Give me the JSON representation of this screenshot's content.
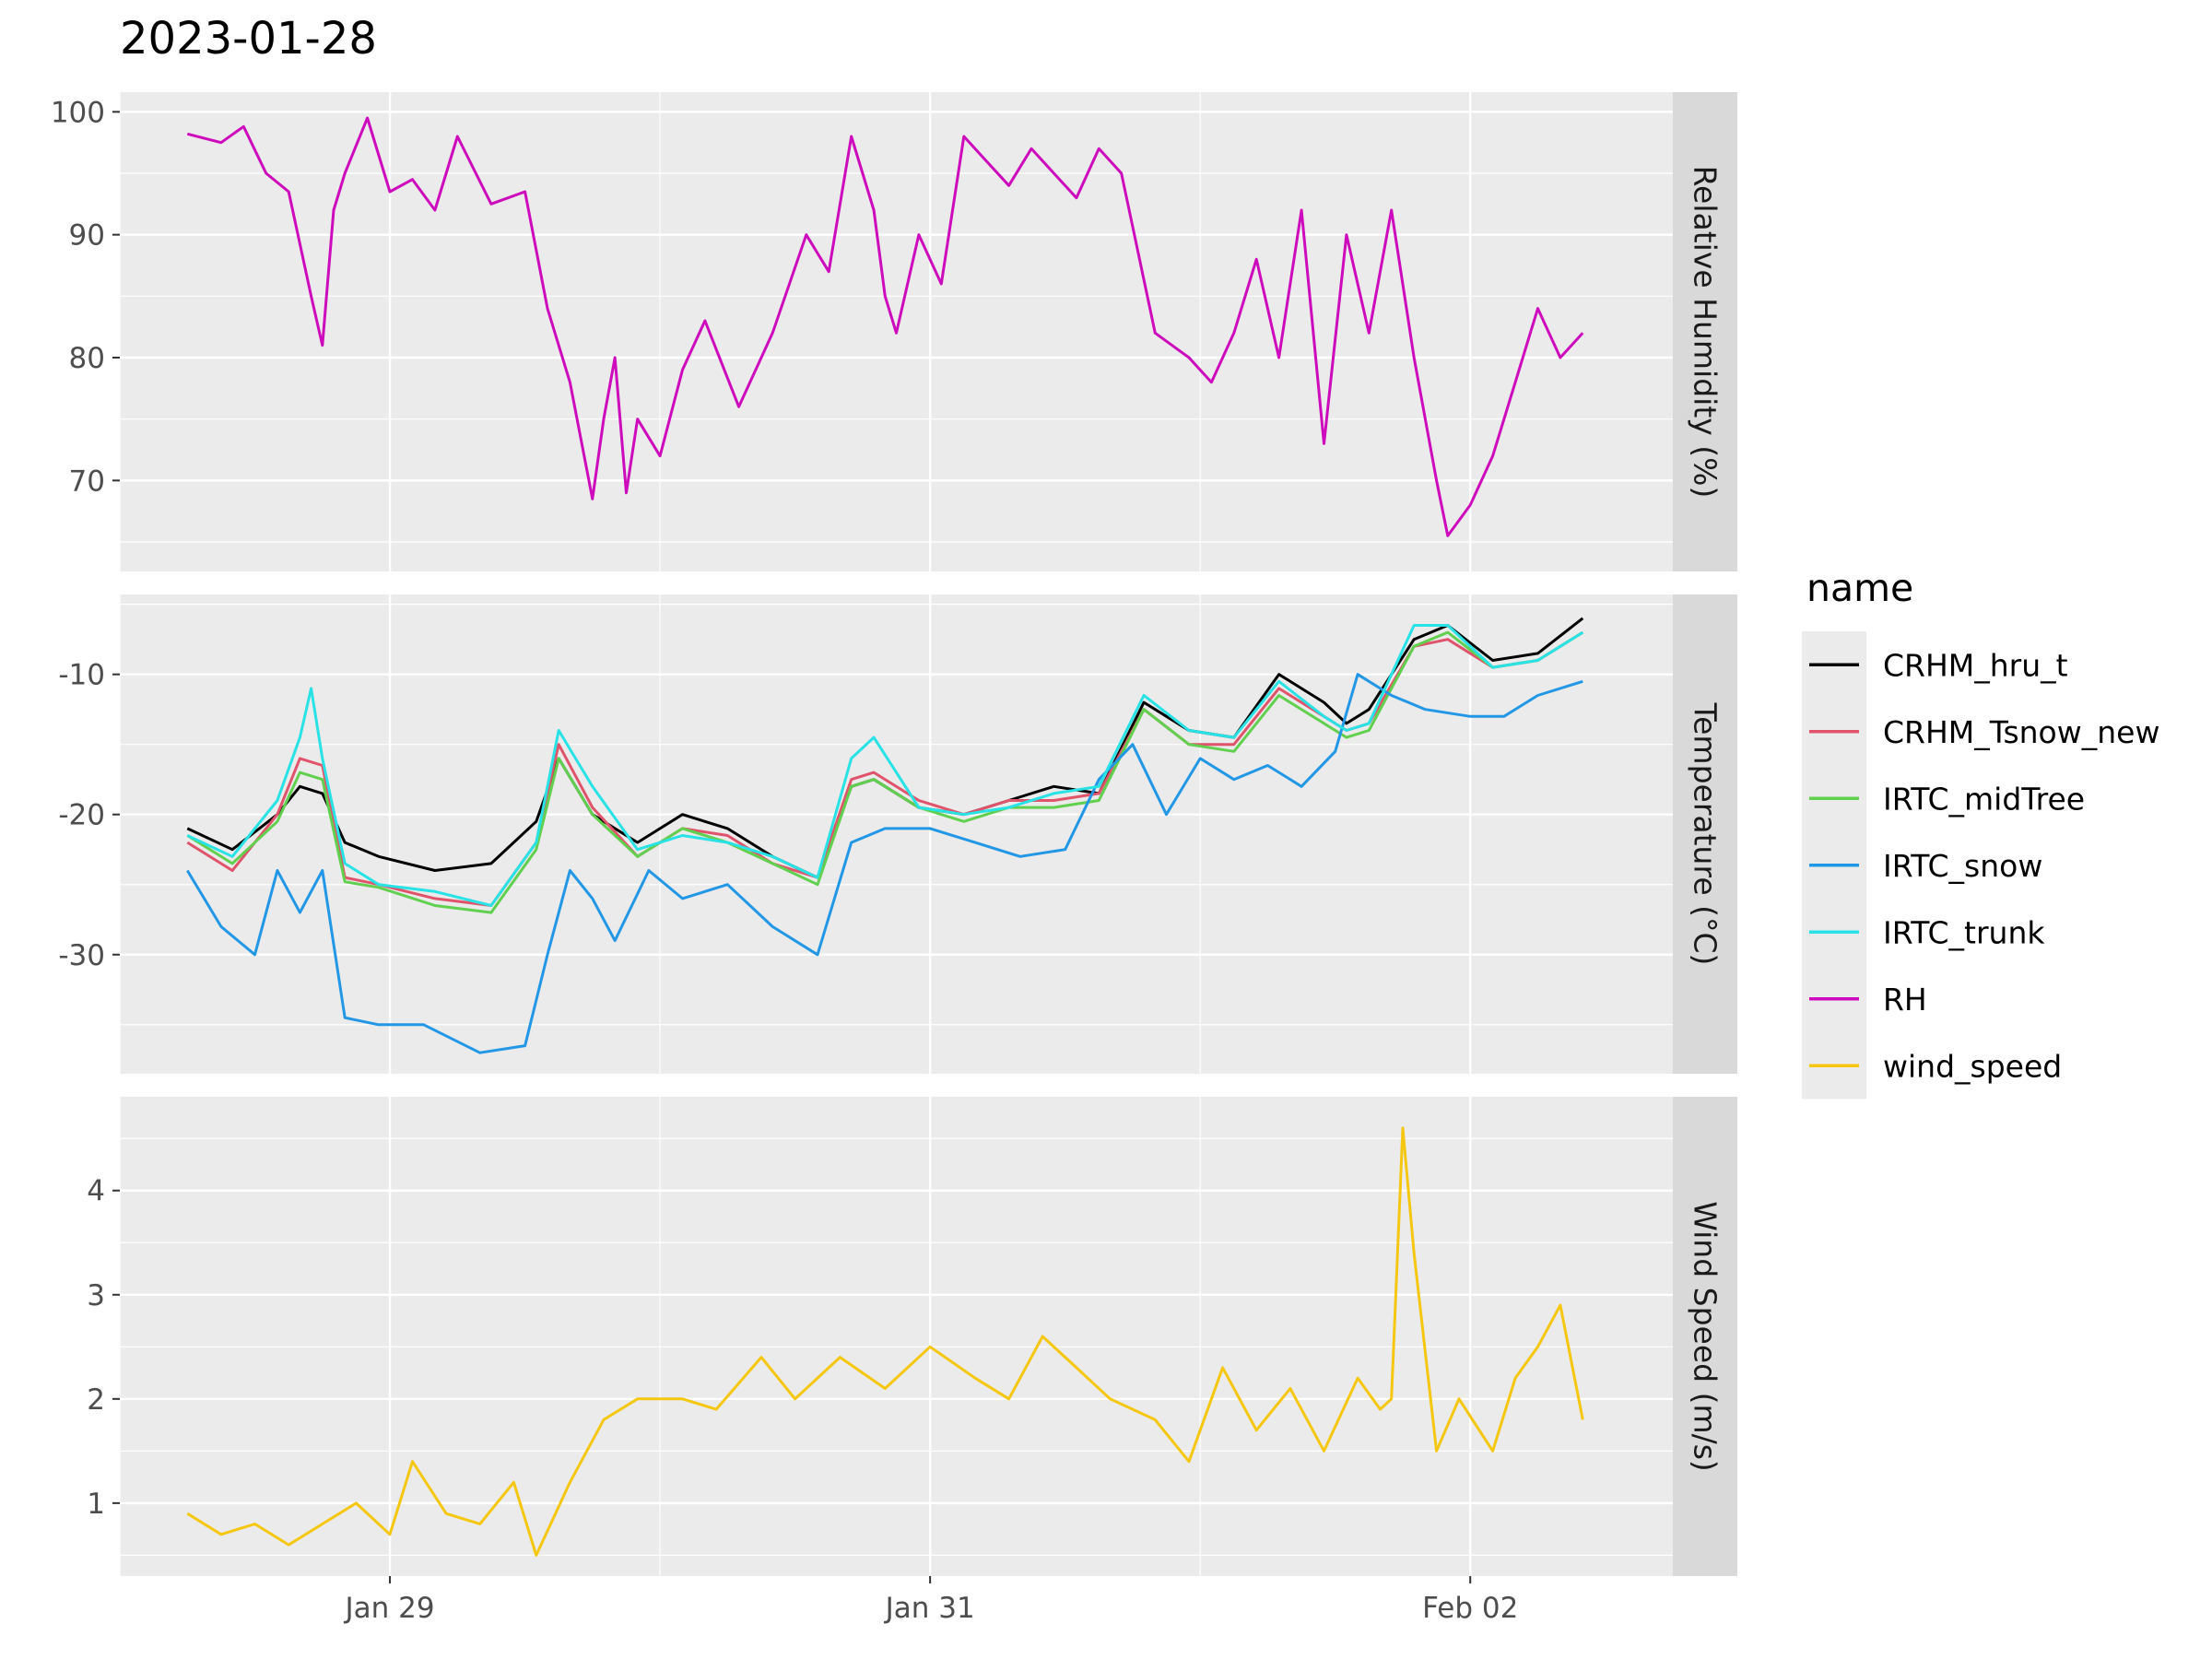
{
  "chart_data": {
    "type": "line",
    "title": "2023-01-28",
    "x_axis": {
      "kind": "time",
      "range": [
        "2023-01-28T00:00",
        "2023-02-02T18:00"
      ],
      "ticks": [
        {
          "date": "2023-01-29T00:00",
          "label": "Jan 29"
        },
        {
          "date": "2023-01-31T00:00",
          "label": "Jan 31"
        },
        {
          "date": "2023-02-02T00:00",
          "label": "Feb 02"
        }
      ],
      "minor_ticks": [
        "2023-01-28T00:00",
        "2023-01-30T00:00",
        "2023-02-01T00:00"
      ]
    },
    "grid": true,
    "legend": {
      "title": "name",
      "placement": "right",
      "entries": [
        {
          "name": "CRHM_hru_t",
          "color": "#000000"
        },
        {
          "name": "CRHM_Tsnow_new",
          "color": "#df536b"
        },
        {
          "name": "IRTC_midTree",
          "color": "#61d04f"
        },
        {
          "name": "IRTC_snow",
          "color": "#2297e6"
        },
        {
          "name": "IRTC_trunk",
          "color": "#28e2e5"
        },
        {
          "name": "RH",
          "color": "#cd0bbc"
        },
        {
          "name": "wind_speed",
          "color": "#f5c710"
        }
      ]
    },
    "panels": [
      {
        "strip": "Relative Humidity (%)",
        "ylim": [
          62.6,
          101.6
        ],
        "yticks": [
          70,
          80,
          90,
          100
        ],
        "y_minor": [
          65,
          75,
          85,
          95
        ],
        "series": [
          {
            "name": "RH",
            "color": "#cd0bbc",
            "x": [
              "2023-01-28T06:00",
              "2023-01-28T09:00",
              "2023-01-28T11:00",
              "2023-01-28T13:00",
              "2023-01-28T15:00",
              "2023-01-28T17:00",
              "2023-01-28T18:00",
              "2023-01-28T19:00",
              "2023-01-28T20:00",
              "2023-01-28T22:00",
              "2023-01-29T00:00",
              "2023-01-29T02:00",
              "2023-01-29T04:00",
              "2023-01-29T06:00",
              "2023-01-29T09:00",
              "2023-01-29T12:00",
              "2023-01-29T14:00",
              "2023-01-29T16:00",
              "2023-01-29T18:00",
              "2023-01-29T19:00",
              "2023-01-29T20:00",
              "2023-01-29T21:00",
              "2023-01-29T22:00",
              "2023-01-30T00:00",
              "2023-01-30T02:00",
              "2023-01-30T04:00",
              "2023-01-30T07:00",
              "2023-01-30T10:00",
              "2023-01-30T13:00",
              "2023-01-30T15:00",
              "2023-01-30T17:00",
              "2023-01-30T18:00",
              "2023-01-30T19:00",
              "2023-01-30T20:00",
              "2023-01-30T21:00",
              "2023-01-30T23:00",
              "2023-01-31T01:00",
              "2023-01-31T03:00",
              "2023-01-31T05:00",
              "2023-01-31T07:00",
              "2023-01-31T09:00",
              "2023-01-31T11:00",
              "2023-01-31T13:00",
              "2023-01-31T15:00",
              "2023-01-31T17:00",
              "2023-01-31T20:00",
              "2023-01-31T23:00",
              "2023-02-01T01:00",
              "2023-02-01T03:00",
              "2023-02-01T05:00",
              "2023-02-01T07:00",
              "2023-02-01T09:00",
              "2023-02-01T11:00",
              "2023-02-01T13:00",
              "2023-02-01T15:00",
              "2023-02-01T17:00",
              "2023-02-01T19:00",
              "2023-02-01T21:00",
              "2023-02-01T22:00",
              "2023-02-02T00:00",
              "2023-02-02T02:00",
              "2023-02-02T04:00",
              "2023-02-02T06:00",
              "2023-02-02T08:00",
              "2023-02-02T10:00"
            ],
            "y": [
              98.2,
              97.5,
              98.8,
              95.0,
              93.5,
              85.0,
              81.0,
              92.0,
              95.0,
              99.5,
              93.5,
              94.5,
              92.0,
              98.0,
              92.5,
              93.5,
              84.0,
              78.0,
              68.5,
              75.0,
              80.0,
              69.0,
              75.0,
              72.0,
              79.0,
              83.0,
              76.0,
              82.0,
              90.0,
              87.0,
              98.0,
              95.0,
              92.0,
              85.0,
              82.0,
              90.0,
              86.0,
              98.0,
              96.0,
              94.0,
              97.0,
              95.0,
              93.0,
              97.0,
              95.0,
              82.0,
              80.0,
              78.0,
              82.0,
              88.0,
              80.0,
              92.0,
              73.0,
              90.0,
              82.0,
              92.0,
              80.0,
              70.0,
              65.5,
              68.0,
              72.0,
              78.0,
              84.0,
              80.0,
              82.0
            ]
          }
        ]
      },
      {
        "strip": "Temperature (°C)",
        "ylim": [
          -38.5,
          -4.3
        ],
        "yticks": [
          -30,
          -20,
          -10
        ],
        "y_minor": [
          -35,
          -25,
          -15,
          -5
        ],
        "series": [
          {
            "name": "CRHM_hru_t",
            "color": "#000000",
            "x": [
              "2023-01-28T06:00",
              "2023-01-28T10:00",
              "2023-01-28T14:00",
              "2023-01-28T16:00",
              "2023-01-28T18:00",
              "2023-01-28T20:00",
              "2023-01-28T23:00",
              "2023-01-29T04:00",
              "2023-01-29T09:00",
              "2023-01-29T13:00",
              "2023-01-29T15:00",
              "2023-01-29T18:00",
              "2023-01-29T22:00",
              "2023-01-30T02:00",
              "2023-01-30T06:00",
              "2023-01-30T10:00",
              "2023-01-30T14:00",
              "2023-01-30T17:00",
              "2023-01-30T19:00",
              "2023-01-30T23:00",
              "2023-01-31T03:00",
              "2023-01-31T07:00",
              "2023-01-31T11:00",
              "2023-01-31T15:00",
              "2023-01-31T19:00",
              "2023-01-31T23:00",
              "2023-02-01T03:00",
              "2023-02-01T07:00",
              "2023-02-01T11:00",
              "2023-02-01T13:00",
              "2023-02-01T15:00",
              "2023-02-01T19:00",
              "2023-02-01T22:00",
              "2023-02-02T02:00",
              "2023-02-02T06:00",
              "2023-02-02T10:00"
            ],
            "y": [
              -21.0,
              -22.5,
              -20.0,
              -18.0,
              -18.5,
              -22.0,
              -23.0,
              -24.0,
              -23.5,
              -20.5,
              -16.0,
              -20.0,
              -22.0,
              -20.0,
              -21.0,
              -23.0,
              -24.5,
              -18.0,
              -17.5,
              -19.5,
              -20.0,
              -19.0,
              -18.0,
              -18.5,
              -12.0,
              -14.0,
              -14.5,
              -10.0,
              -12.0,
              -13.5,
              -12.5,
              -7.5,
              -6.5,
              -9.0,
              -8.5,
              -6.0
            ]
          },
          {
            "name": "CRHM_Tsnow_new",
            "color": "#df536b",
            "x": [
              "2023-01-28T06:00",
              "2023-01-28T10:00",
              "2023-01-28T14:00",
              "2023-01-28T16:00",
              "2023-01-28T18:00",
              "2023-01-28T20:00",
              "2023-01-28T23:00",
              "2023-01-29T04:00",
              "2023-01-29T09:00",
              "2023-01-29T13:00",
              "2023-01-29T15:00",
              "2023-01-29T18:00",
              "2023-01-29T22:00",
              "2023-01-30T02:00",
              "2023-01-30T06:00",
              "2023-01-30T10:00",
              "2023-01-30T14:00",
              "2023-01-30T17:00",
              "2023-01-30T19:00",
              "2023-01-30T23:00",
              "2023-01-31T03:00",
              "2023-01-31T07:00",
              "2023-01-31T11:00",
              "2023-01-31T15:00",
              "2023-01-31T19:00",
              "2023-01-31T23:00",
              "2023-02-01T03:00",
              "2023-02-01T07:00",
              "2023-02-01T11:00",
              "2023-02-01T13:00",
              "2023-02-01T15:00",
              "2023-02-01T19:00",
              "2023-02-01T22:00",
              "2023-02-02T02:00",
              "2023-02-02T06:00",
              "2023-02-02T10:00"
            ],
            "y": [
              -22.0,
              -24.0,
              -20.0,
              -16.0,
              -16.5,
              -24.5,
              -25.0,
              -26.0,
              -26.5,
              -22.0,
              -15.0,
              -19.5,
              -23.0,
              -21.0,
              -21.5,
              -23.5,
              -24.5,
              -17.5,
              -17.0,
              -19.0,
              -20.0,
              -19.0,
              -19.0,
              -18.5,
              -12.5,
              -15.0,
              -15.0,
              -11.0,
              -13.0,
              -14.0,
              -13.5,
              -8.0,
              -7.5,
              -9.5,
              -9.0,
              -7.0
            ]
          },
          {
            "name": "IRTC_midTree",
            "color": "#61d04f",
            "x": [
              "2023-01-28T06:00",
              "2023-01-28T10:00",
              "2023-01-28T14:00",
              "2023-01-28T16:00",
              "2023-01-28T18:00",
              "2023-01-28T20:00",
              "2023-01-28T23:00",
              "2023-01-29T04:00",
              "2023-01-29T09:00",
              "2023-01-29T13:00",
              "2023-01-29T15:00",
              "2023-01-29T18:00",
              "2023-01-29T22:00",
              "2023-01-30T02:00",
              "2023-01-30T06:00",
              "2023-01-30T10:00",
              "2023-01-30T14:00",
              "2023-01-30T17:00",
              "2023-01-30T19:00",
              "2023-01-30T23:00",
              "2023-01-31T03:00",
              "2023-01-31T07:00",
              "2023-01-31T11:00",
              "2023-01-31T15:00",
              "2023-01-31T19:00",
              "2023-01-31T23:00",
              "2023-02-01T03:00",
              "2023-02-01T07:00",
              "2023-02-01T11:00",
              "2023-02-01T13:00",
              "2023-02-01T15:00",
              "2023-02-01T19:00",
              "2023-02-01T22:00",
              "2023-02-02T02:00",
              "2023-02-02T06:00",
              "2023-02-02T10:00"
            ],
            "y": [
              -21.5,
              -23.5,
              -20.5,
              -17.0,
              -17.5,
              -24.8,
              -25.2,
              -26.5,
              -27.0,
              -22.5,
              -16.0,
              -20.0,
              -23.0,
              -21.0,
              -22.0,
              -23.5,
              -25.0,
              -18.0,
              -17.5,
              -19.5,
              -20.5,
              -19.5,
              -19.5,
              -19.0,
              -12.5,
              -15.0,
              -15.5,
              -11.5,
              -13.5,
              -14.5,
              -14.0,
              -8.0,
              -7.0,
              -9.5,
              -9.0,
              -7.0
            ]
          },
          {
            "name": "IRTC_snow",
            "color": "#2297e6",
            "x": [
              "2023-01-28T06:00",
              "2023-01-28T09:00",
              "2023-01-28T12:00",
              "2023-01-28T14:00",
              "2023-01-28T16:00",
              "2023-01-28T18:00",
              "2023-01-28T20:00",
              "2023-01-28T23:00",
              "2023-01-29T03:00",
              "2023-01-29T08:00",
              "2023-01-29T12:00",
              "2023-01-29T14:00",
              "2023-01-29T16:00",
              "2023-01-29T18:00",
              "2023-01-29T20:00",
              "2023-01-29T23:00",
              "2023-01-30T02:00",
              "2023-01-30T06:00",
              "2023-01-30T10:00",
              "2023-01-30T14:00",
              "2023-01-30T17:00",
              "2023-01-30T20:00",
              "2023-01-31T00:00",
              "2023-01-31T04:00",
              "2023-01-31T08:00",
              "2023-01-31T12:00",
              "2023-01-31T15:00",
              "2023-01-31T18:00",
              "2023-01-31T21:00",
              "2023-02-01T00:00",
              "2023-02-01T03:00",
              "2023-02-01T06:00",
              "2023-02-01T09:00",
              "2023-02-01T12:00",
              "2023-02-01T14:00",
              "2023-02-01T17:00",
              "2023-02-01T20:00",
              "2023-02-02T00:00",
              "2023-02-02T03:00",
              "2023-02-02T06:00",
              "2023-02-02T10:00"
            ],
            "y": [
              -24.0,
              -28.0,
              -30.0,
              -24.0,
              -27.0,
              -24.0,
              -34.5,
              -35.0,
              -35.0,
              -37.0,
              -36.5,
              -30.0,
              -24.0,
              -26.0,
              -29.0,
              -24.0,
              -26.0,
              -25.0,
              -28.0,
              -30.0,
              -22.0,
              -21.0,
              -21.0,
              -22.0,
              -23.0,
              -22.5,
              -17.5,
              -15.0,
              -20.0,
              -16.0,
              -17.5,
              -16.5,
              -18.0,
              -15.5,
              -10.0,
              -11.5,
              -12.5,
              -13.0,
              -13.0,
              -11.5,
              -10.5
            ]
          },
          {
            "name": "IRTC_trunk",
            "color": "#28e2e5",
            "x": [
              "2023-01-28T06:00",
              "2023-01-28T10:00",
              "2023-01-28T14:00",
              "2023-01-28T16:00",
              "2023-01-28T17:00",
              "2023-01-28T18:00",
              "2023-01-28T20:00",
              "2023-01-28T23:00",
              "2023-01-29T04:00",
              "2023-01-29T09:00",
              "2023-01-29T13:00",
              "2023-01-29T15:00",
              "2023-01-29T18:00",
              "2023-01-29T22:00",
              "2023-01-30T02:00",
              "2023-01-30T06:00",
              "2023-01-30T10:00",
              "2023-01-30T14:00",
              "2023-01-30T17:00",
              "2023-01-30T19:00",
              "2023-01-30T23:00",
              "2023-01-31T03:00",
              "2023-01-31T07:00",
              "2023-01-31T11:00",
              "2023-01-31T15:00",
              "2023-01-31T19:00",
              "2023-01-31T23:00",
              "2023-02-01T03:00",
              "2023-02-01T07:00",
              "2023-02-01T11:00",
              "2023-02-01T13:00",
              "2023-02-01T15:00",
              "2023-02-01T19:00",
              "2023-02-01T22:00",
              "2023-02-02T02:00",
              "2023-02-02T06:00",
              "2023-02-02T10:00"
            ],
            "y": [
              -21.5,
              -23.0,
              -19.0,
              -14.5,
              -11.0,
              -16.0,
              -23.5,
              -25.0,
              -25.5,
              -26.5,
              -22.0,
              -14.0,
              -18.0,
              -22.5,
              -21.5,
              -22.0,
              -23.0,
              -24.5,
              -16.0,
              -14.5,
              -19.5,
              -20.0,
              -19.5,
              -18.5,
              -18.0,
              -11.5,
              -14.0,
              -14.5,
              -10.5,
              -13.0,
              -14.0,
              -13.5,
              -6.5,
              -6.5,
              -9.5,
              -9.0,
              -7.0
            ]
          }
        ]
      },
      {
        "strip": "Wind Speed (m/s)",
        "ylim": [
          0.3,
          4.9
        ],
        "yticks": [
          1,
          2,
          3,
          4
        ],
        "y_minor": [
          0.5,
          1.5,
          2.5,
          3.5,
          4.5
        ],
        "series": [
          {
            "name": "wind_speed",
            "color": "#f5c710",
            "x": [
              "2023-01-28T06:00",
              "2023-01-28T09:00",
              "2023-01-28T12:00",
              "2023-01-28T15:00",
              "2023-01-28T18:00",
              "2023-01-28T21:00",
              "2023-01-29T00:00",
              "2023-01-29T02:00",
              "2023-01-29T05:00",
              "2023-01-29T08:00",
              "2023-01-29T11:00",
              "2023-01-29T13:00",
              "2023-01-29T16:00",
              "2023-01-29T19:00",
              "2023-01-29T22:00",
              "2023-01-30T02:00",
              "2023-01-30T05:00",
              "2023-01-30T09:00",
              "2023-01-30T12:00",
              "2023-01-30T16:00",
              "2023-01-30T20:00",
              "2023-01-31T00:00",
              "2023-01-31T04:00",
              "2023-01-31T07:00",
              "2023-01-31T10:00",
              "2023-01-31T13:00",
              "2023-01-31T16:00",
              "2023-01-31T20:00",
              "2023-01-31T23:00",
              "2023-02-01T02:00",
              "2023-02-01T05:00",
              "2023-02-01T08:00",
              "2023-02-01T11:00",
              "2023-02-01T14:00",
              "2023-02-01T16:00",
              "2023-02-01T17:00",
              "2023-02-01T18:00",
              "2023-02-01T19:00",
              "2023-02-01T21:00",
              "2023-02-01T23:00",
              "2023-02-02T02:00",
              "2023-02-02T04:00",
              "2023-02-02T06:00",
              "2023-02-02T08:00",
              "2023-02-02T10:00"
            ],
            "y": [
              0.9,
              0.7,
              0.8,
              0.6,
              0.8,
              1.0,
              0.7,
              1.4,
              0.9,
              0.8,
              1.2,
              0.5,
              1.2,
              1.8,
              2.0,
              2.0,
              1.9,
              2.4,
              2.0,
              2.4,
              2.1,
              2.5,
              2.2,
              2.0,
              2.6,
              2.3,
              2.0,
              1.8,
              1.4,
              2.3,
              1.7,
              2.1,
              1.5,
              2.2,
              1.9,
              2.0,
              4.6,
              3.4,
              1.5,
              2.0,
              1.5,
              2.2,
              2.5,
              2.9,
              1.8
            ]
          }
        ]
      }
    ]
  }
}
